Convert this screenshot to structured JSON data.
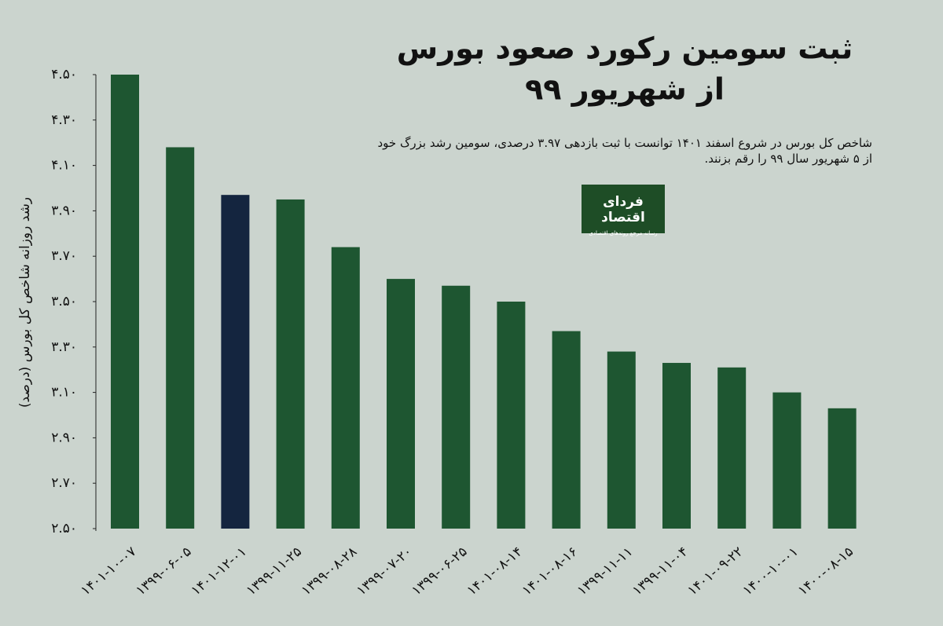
{
  "chart_data": {
    "type": "bar",
    "title": [
      "ثبت سومین رکورد صعود بورس",
      "از شهریور ۹۹"
    ],
    "description": "شاخص کل بورس در شروع اسفند ۱۴۰۱ توانست با ثبت بازدهی ۳.۹۷ درصدی، سومین رشد بزرگ خود از ۵ شهریور سال ۹۹ را رقم بزنند.",
    "y_label": "رشد روزانه شاخص کل بورس (درصد)",
    "categories": [
      "۱۴۰۱-۱۰-۰۷",
      "۱۳۹۹-۰۶-۰۵",
      "۱۴۰۱-۱۲-۰۱",
      "۱۳۹۹-۱۱-۲۵",
      "۱۳۹۹-۰۸-۲۸",
      "۱۳۹۹-۰۷-۲۰",
      "۱۳۹۹-۰۶-۲۵",
      "۱۴۰۱-۰۸-۱۴",
      "۱۴۰۱-۰۸-۱۶",
      "۱۳۹۹-۱۱-۱۱",
      "۱۳۹۹-۱۱-۰۴",
      "۱۴۰۱-۰۹-۲۲",
      "۱۴۰۰-۱۰-۰۱",
      "۱۴۰۰-۰۸-۱۵"
    ],
    "values": [
      4.5,
      4.18,
      3.97,
      3.95,
      3.74,
      3.6,
      3.57,
      3.5,
      3.37,
      3.28,
      3.23,
      3.21,
      3.1,
      3.03
    ],
    "colors": [
      "#1e5631",
      "#1e5631",
      "#14253f",
      "#1e5631",
      "#1e5631",
      "#1e5631",
      "#1e5631",
      "#1e5631",
      "#1e5631",
      "#1e5631",
      "#1e5631",
      "#1e5631",
      "#1e5631",
      "#1e5631"
    ],
    "ylim": [
      2.5,
      4.5
    ],
    "yticks": [
      {
        "value": 2.5,
        "label": "۲.۵۰"
      },
      {
        "value": 2.7,
        "label": "۲.۷۰"
      },
      {
        "value": 2.9,
        "label": "۲.۹۰"
      },
      {
        "value": 3.1,
        "label": "۳.۱۰"
      },
      {
        "value": 3.3,
        "label": "۳.۳۰"
      },
      {
        "value": 3.5,
        "label": "۳.۵۰"
      },
      {
        "value": 3.7,
        "label": "۳.۷۰"
      },
      {
        "value": 3.9,
        "label": "۳.۹۰"
      },
      {
        "value": 4.1,
        "label": "۴.۱۰"
      },
      {
        "value": 4.3,
        "label": "۴.۳۰"
      },
      {
        "value": 4.5,
        "label": "۴.۵۰"
      }
    ],
    "grid": false
  },
  "logo": {
    "name": "فردای اقتصاد",
    "tagline": "رسانه مرجع روندهای اقتصادی"
  }
}
